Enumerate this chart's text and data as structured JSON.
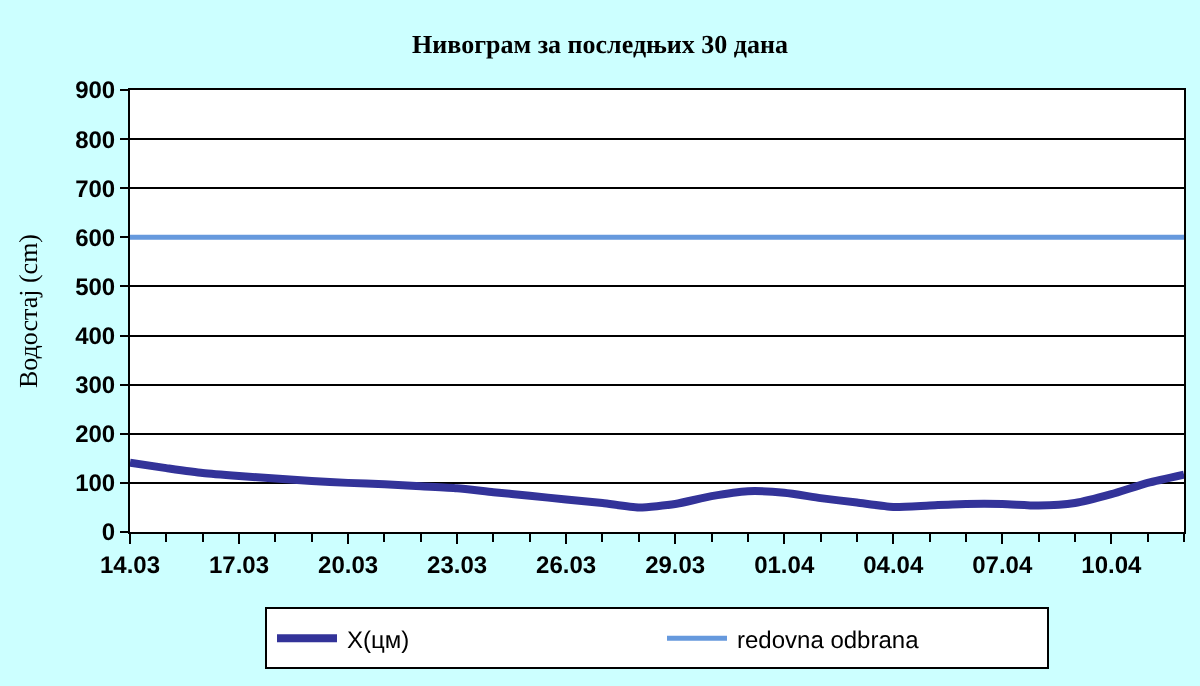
{
  "chart_data": {
    "type": "line",
    "title": "Нивограм за последњих 30 дана",
    "ylabel": "Водостај (cm)",
    "categories": [
      "14.03",
      null,
      null,
      "17.03",
      null,
      null,
      "20.03",
      null,
      null,
      "23.03",
      null,
      null,
      "26.03",
      null,
      null,
      "29.03",
      null,
      null,
      "01.04",
      null,
      null,
      "04.04",
      null,
      null,
      "07.04",
      null,
      null,
      "10.04",
      null,
      null
    ],
    "series": [
      {
        "name": "X(цм)",
        "color": "#333399",
        "values": [
          141,
          130,
          120,
          114,
          109,
          104,
          100,
          97,
          93,
          89,
          81,
          74,
          66,
          59,
          50,
          57,
          73,
          83,
          80,
          69,
          60,
          51,
          54,
          57,
          57,
          54,
          59,
          77,
          100,
          117
        ]
      }
    ],
    "ref_lines": [
      {
        "axis": "y",
        "value": 600,
        "label": "redovna odbrana",
        "color": "#6699dd"
      }
    ],
    "ylim": [
      0,
      900
    ],
    "yticks": [
      0,
      100,
      200,
      300,
      400,
      500,
      600,
      700,
      800,
      900
    ],
    "grid": "y",
    "legend": "bottom",
    "marker": "none",
    "line_style": "solid"
  }
}
